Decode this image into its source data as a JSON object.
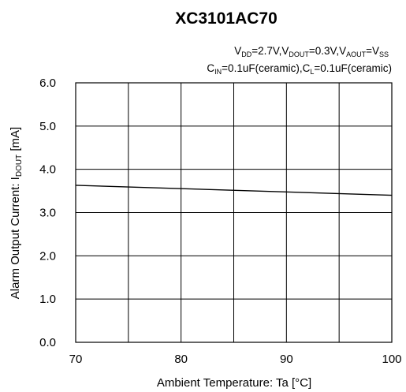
{
  "chart_data": {
    "type": "line",
    "title": "XC3101AC70",
    "conditions": {
      "line1": {
        "v": "V",
        "dd": "DD",
        "eq1": "=2.7V,V",
        "dout": "DOUT",
        "eq2": "=0.3V,V",
        "aout": "AOUT",
        "eq3": "=V",
        "ss": "SS"
      },
      "line2": {
        "c1": "C",
        "in": "IN",
        "eq1": "=0.1uF(ceramic),C",
        "l": "L",
        "eq2": "=0.1uF(ceramic)"
      }
    },
    "xlabel": "Ambient Temperature: Ta [°C]",
    "ylabel": {
      "main": "Alarm Output Current: I",
      "sub": "DOUT",
      "unit": " [mA]"
    },
    "xlim": [
      70,
      100
    ],
    "ylim": [
      0,
      6
    ],
    "x_ticks": [
      "70",
      "80",
      "90",
      "100"
    ],
    "y_ticks": [
      "0.0",
      "1.0",
      "2.0",
      "3.0",
      "4.0",
      "5.0",
      "6.0"
    ],
    "grid": true,
    "series": [
      {
        "x": [
          70,
          100
        ],
        "values": [
          3.63,
          3.4
        ]
      }
    ]
  },
  "colors": {
    "grid": "#000000",
    "line": "#000000",
    "background": "#ffffff"
  }
}
